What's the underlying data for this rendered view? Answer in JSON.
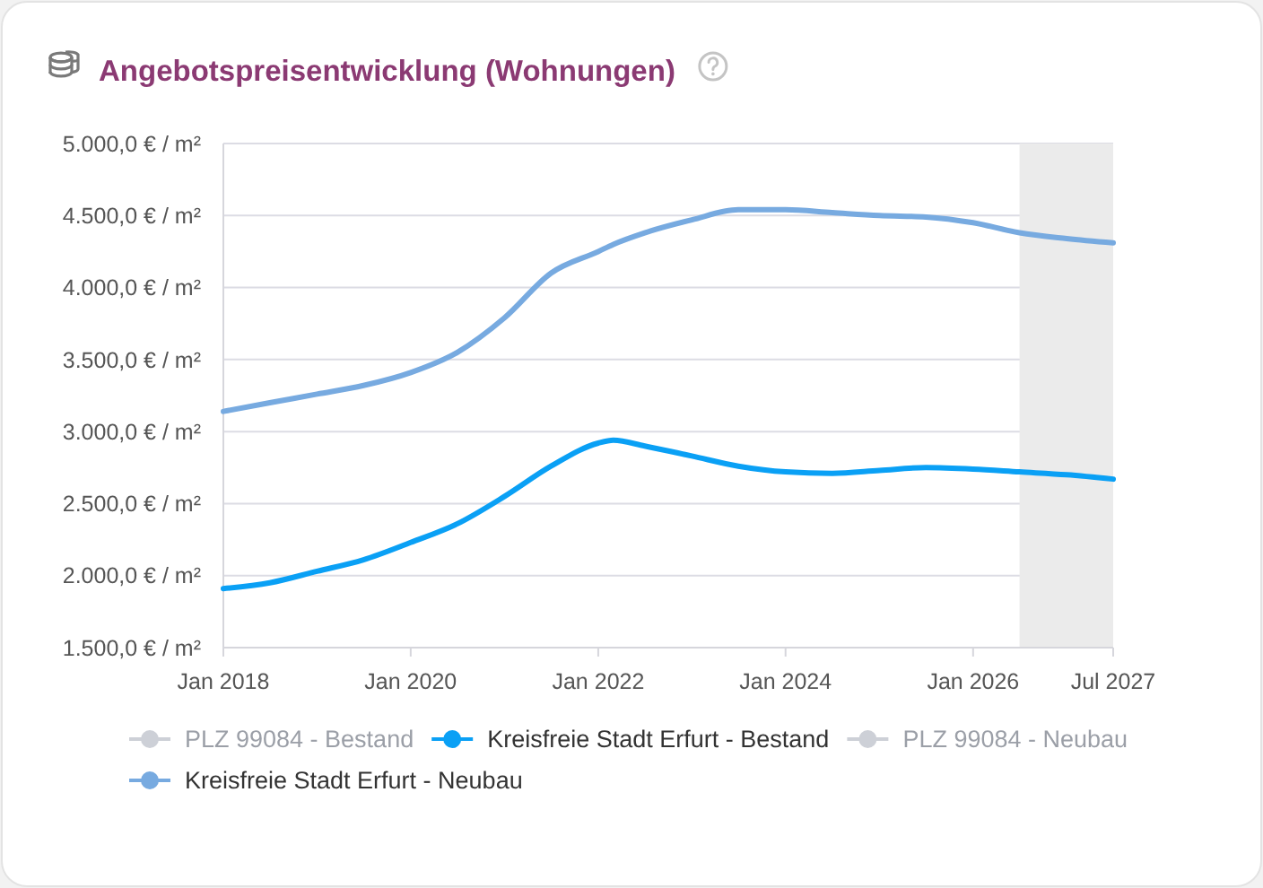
{
  "chart_data": {
    "type": "line",
    "title": "Angebotspreisentwicklung (Wohnungen)",
    "x": [
      "2018-01",
      "2018-07",
      "2019-01",
      "2019-07",
      "2020-01",
      "2020-07",
      "2021-01",
      "2021-07",
      "2022-01",
      "2022-03",
      "2022-07",
      "2023-01",
      "2023-07",
      "2024-01",
      "2024-07",
      "2025-01",
      "2025-07",
      "2026-01",
      "2026-07",
      "2027-01",
      "2027-07"
    ],
    "series": [
      {
        "name": "PLZ 99084 - Bestand",
        "color": "#cdd0d7",
        "values": [
          null,
          null,
          null,
          null,
          null,
          null,
          null,
          null,
          null,
          null,
          null,
          null,
          null,
          null,
          null,
          null,
          null,
          null,
          null,
          null,
          null
        ]
      },
      {
        "name": "Kreisfreie Stadt Erfurt - Bestand",
        "color": "#0aa0f5",
        "values": [
          1910,
          1950,
          2030,
          2110,
          2230,
          2360,
          2550,
          2760,
          2920,
          2940,
          2900,
          2830,
          2760,
          2720,
          2710,
          2730,
          2750,
          2740,
          2720,
          2700,
          2670
        ]
      },
      {
        "name": "PLZ 99084 - Neubau",
        "color": "#cdd0d7",
        "values": [
          null,
          null,
          null,
          null,
          null,
          null,
          null,
          null,
          null,
          null,
          null,
          null,
          null,
          null,
          null,
          null,
          null,
          null,
          null,
          null,
          null
        ]
      },
      {
        "name": "Kreisfreie Stadt Erfurt - Neubau",
        "color": "#77aae0",
        "values": [
          3140,
          3200,
          3260,
          3320,
          3410,
          3550,
          3790,
          4100,
          4250,
          4300,
          4380,
          4470,
          4540,
          4540,
          4520,
          4500,
          4490,
          4450,
          4380,
          4340,
          4310
        ]
      }
    ],
    "xlim": [
      "2018-01",
      "2027-07"
    ],
    "xticks": [
      {
        "value": "2018-01",
        "label": "Jan 2018"
      },
      {
        "value": "2020-01",
        "label": "Jan 2020"
      },
      {
        "value": "2022-01",
        "label": "Jan 2022"
      },
      {
        "value": "2024-01",
        "label": "Jan 2024"
      },
      {
        "value": "2026-01",
        "label": "Jan 2026"
      },
      {
        "value": "2027-07",
        "label": "Jul 2027"
      }
    ],
    "ylim": [
      1500,
      5000
    ],
    "yticks": [
      {
        "value": 1500,
        "label": "1.500,0 € / m²"
      },
      {
        "value": 2000,
        "label": "2.000,0 € / m²"
      },
      {
        "value": 2500,
        "label": "2.500,0 € / m²"
      },
      {
        "value": 3000,
        "label": "3.000,0 € / m²"
      },
      {
        "value": 3500,
        "label": "3.500,0 € / m²"
      },
      {
        "value": 4000,
        "label": "4.000,0 € / m²"
      },
      {
        "value": 4500,
        "label": "4.500,0 € / m²"
      },
      {
        "value": 5000,
        "label": "5.000,0 € / m²"
      }
    ],
    "bands": [
      {
        "axis": "x",
        "from": "2026-07",
        "to": "2027-07",
        "color": "#ebebeb"
      }
    ],
    "grid": "y",
    "legend": "bottom"
  }
}
